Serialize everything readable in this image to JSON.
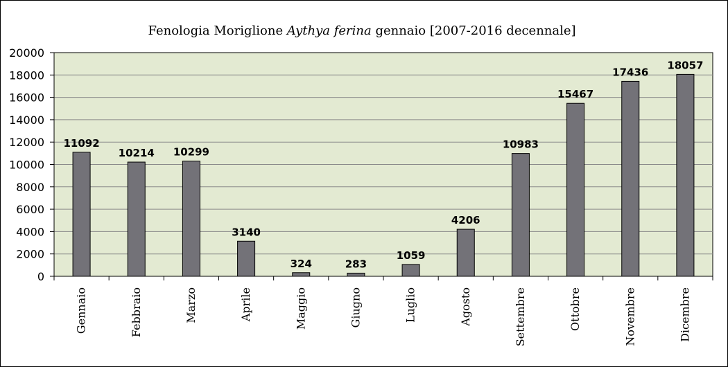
{
  "chart_data": {
    "type": "bar",
    "title": {
      "prefix": "Fenologia Moriglione ",
      "species": "Aythya ferina",
      "suffix": " gennaio [2007-2016 decennale]"
    },
    "categories": [
      "Gennaio",
      "Febbraio",
      "Marzo",
      "Aprile",
      "Maggio",
      "Giugno",
      "Luglio",
      "Agosto",
      "Settembre",
      "Ottobre",
      "Novembre",
      "Dicembre"
    ],
    "values": [
      11092,
      10214,
      10299,
      3140,
      324,
      283,
      1059,
      4206,
      10983,
      15467,
      17436,
      18057
    ],
    "ylim": [
      0,
      20000
    ],
    "yticks": [
      0,
      2000,
      4000,
      6000,
      8000,
      10000,
      12000,
      14000,
      16000,
      18000,
      20000
    ],
    "grid": true,
    "colors": {
      "plot_bg": "#e3ead2",
      "bar": "#737278",
      "grid": "#8a8a8a"
    }
  }
}
